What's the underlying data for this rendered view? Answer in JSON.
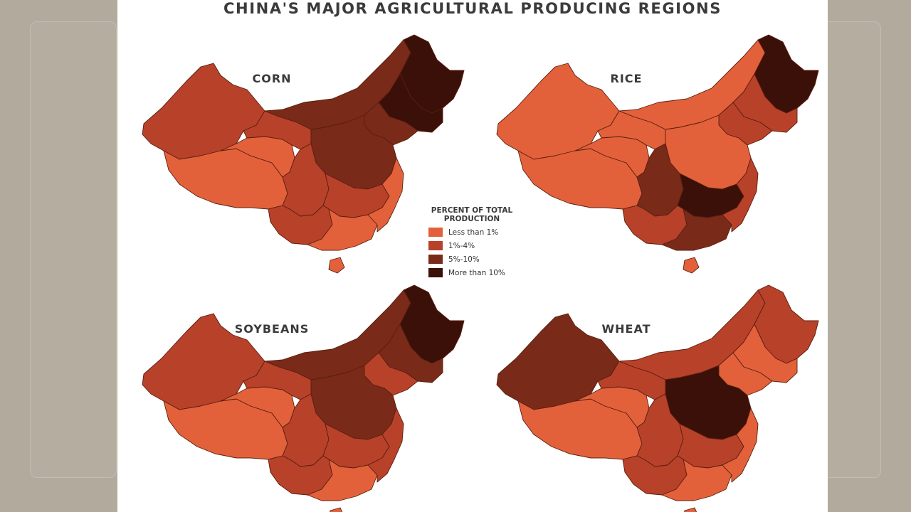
{
  "title": "CHINA'S MAJOR AGRICULTURAL PRODUCING REGIONS",
  "legend": {
    "title": "PERCENT OF TOTAL PRODUCTION",
    "items": [
      {
        "label": "Less than 1%",
        "color": "#e3613a"
      },
      {
        "label": "1%-4%",
        "color": "#b8412a"
      },
      {
        "label": "5%-10%",
        "color": "#7a2a19"
      },
      {
        "label": "More than 10%",
        "color": "#3a1009"
      }
    ]
  },
  "maps": [
    {
      "title": "CORN",
      "shares": {
        "xinjiang": "1-4",
        "tibet": "<1",
        "qinghai": "<1",
        "gansu": "1-4",
        "inner_mongolia": "5-10",
        "heilongjiang": ">10",
        "jilin": ">10",
        "liaoning": "5-10",
        "north_china_plain": "5-10",
        "sichuan": "1-4",
        "central": "1-4",
        "southwest": "1-4",
        "south": "<1",
        "southeast_coast": "<1",
        "hainan": "<1"
      }
    },
    {
      "title": "RICE",
      "shares": {
        "xinjiang": "<1",
        "tibet": "<1",
        "qinghai": "<1",
        "gansu": "<1",
        "inner_mongolia": "<1",
        "heilongjiang": ">10",
        "jilin": "1-4",
        "liaoning": "1-4",
        "north_china_plain": "<1",
        "sichuan": "5-10",
        "central": ">10",
        "southwest": "1-4",
        "south": "5-10",
        "southeast_coast": "1-4",
        "hainan": "<1"
      }
    },
    {
      "title": "SOYBEANS",
      "shares": {
        "xinjiang": "1-4",
        "tibet": "<1",
        "qinghai": "<1",
        "gansu": "1-4",
        "inner_mongolia": "5-10",
        "heilongjiang": ">10",
        "jilin": "5-10",
        "liaoning": "1-4",
        "north_china_plain": "5-10",
        "sichuan": "1-4",
        "central": "1-4",
        "southwest": "1-4",
        "south": "<1",
        "southeast_coast": "1-4",
        "hainan": "<1"
      }
    },
    {
      "title": "WHEAT",
      "shares": {
        "xinjiang": "5-10",
        "tibet": "<1",
        "qinghai": "<1",
        "gansu": "1-4",
        "inner_mongolia": "1-4",
        "heilongjiang": "1-4",
        "jilin": "<1",
        "liaoning": "<1",
        "north_china_plain": ">10",
        "sichuan": "1-4",
        "central": "1-4",
        "southwest": "1-4",
        "south": "<1",
        "southeast_coast": "<1",
        "hainan": "<1"
      }
    }
  ]
}
